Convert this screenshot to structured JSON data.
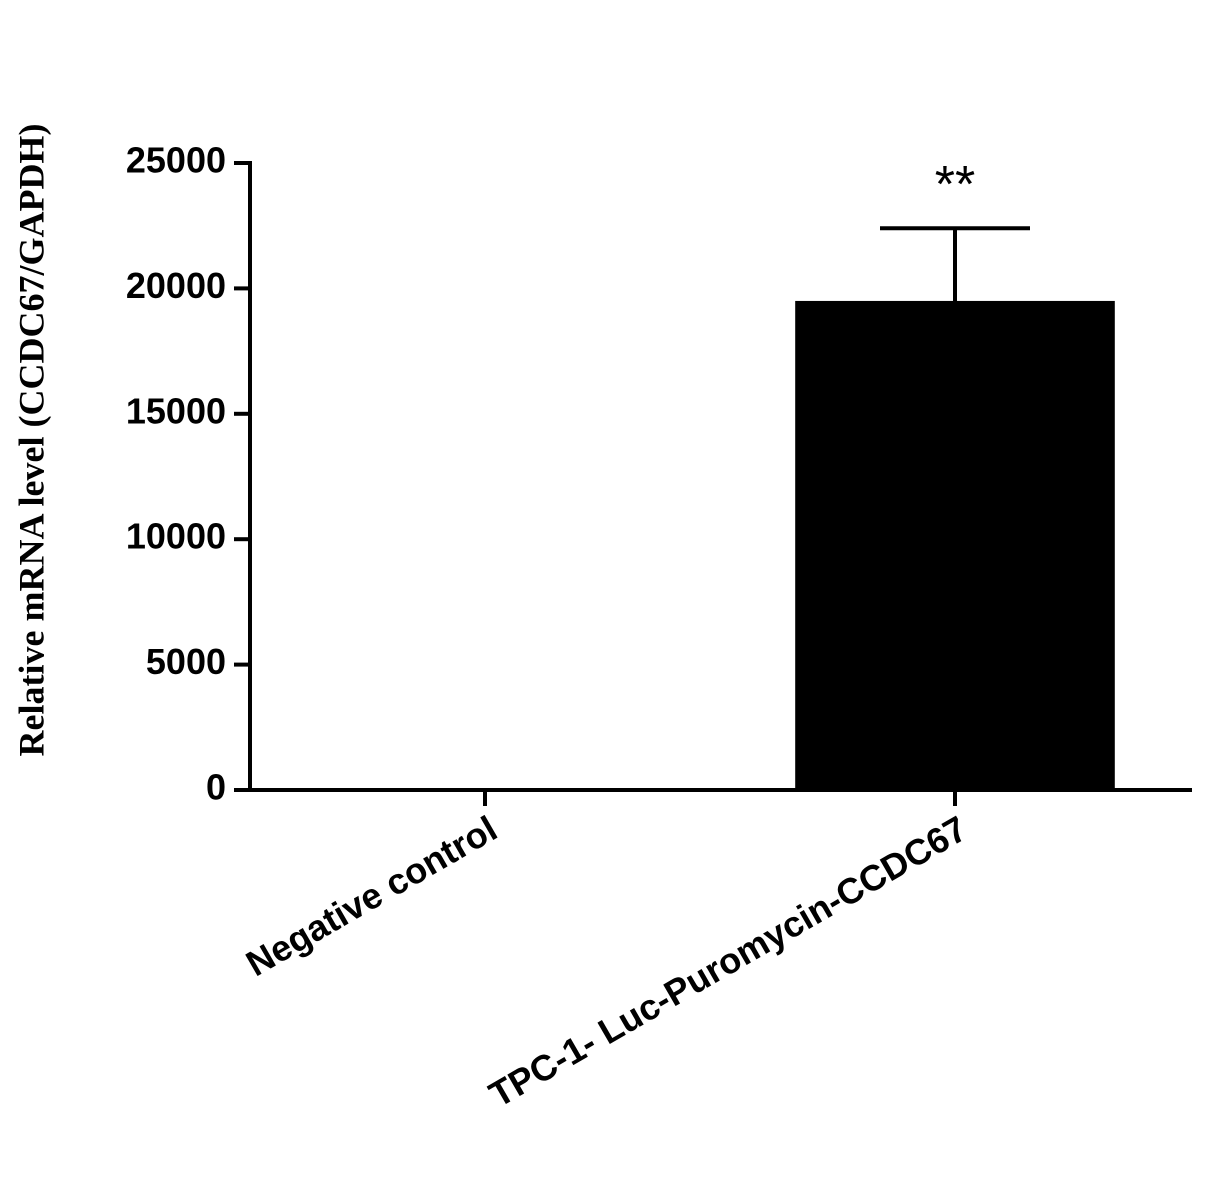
{
  "chart_data": {
    "type": "bar",
    "y_label": "Relative mRNA level (CCDC67/GAPDH)",
    "categories": [
      "Negative control",
      "TPC-1- Luc-Puromycin-CCDC67"
    ],
    "values": [
      1,
      19500
    ],
    "errors": [
      0,
      2900
    ],
    "annotations": [
      null,
      "**"
    ],
    "color": "#000000",
    "ylim": [
      0,
      25000
    ],
    "yticks": [
      0,
      5000,
      10000,
      15000,
      20000,
      25000
    ],
    "grid": false
  }
}
